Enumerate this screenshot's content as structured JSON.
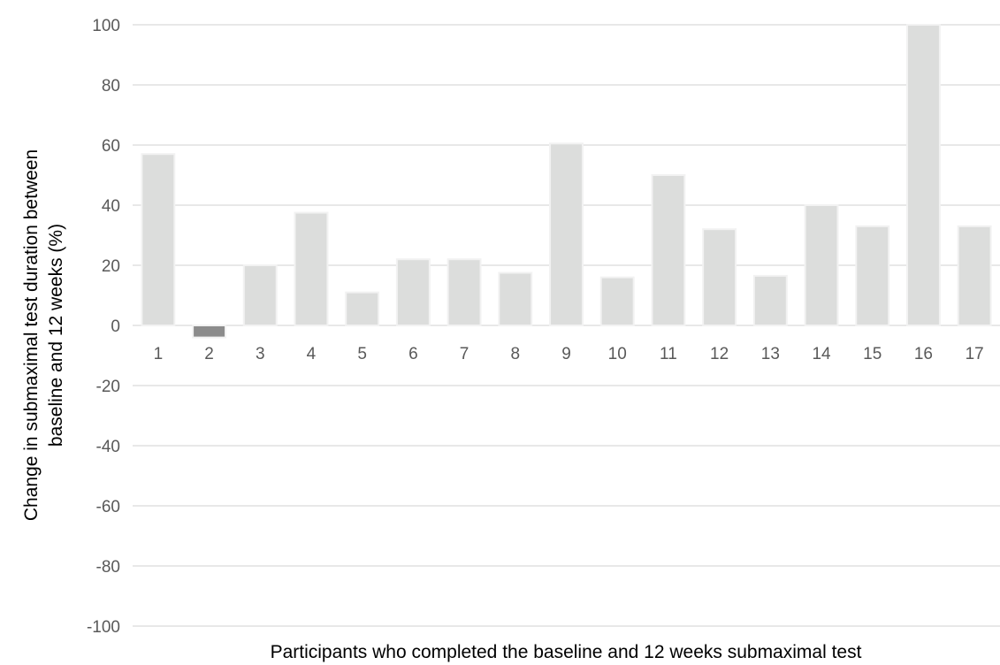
{
  "chart_data": {
    "type": "bar",
    "categories": [
      "1",
      "2",
      "3",
      "4",
      "5",
      "6",
      "7",
      "8",
      "9",
      "10",
      "11",
      "12",
      "13",
      "14",
      "15",
      "16",
      "17"
    ],
    "values": [
      57,
      -4,
      20,
      37.5,
      11,
      22,
      22,
      17.5,
      60.5,
      16,
      50,
      32,
      16.5,
      40,
      33,
      100,
      33
    ],
    "title": "",
    "xlabel": "Participants who completed the baseline and 12 weeks submaximal test",
    "ylabel_line1": "Change in submaximal test duration between",
    "ylabel_line2": "baseline and 12 weeks (%)",
    "ylim": [
      -100,
      100
    ],
    "yticks": [
      100,
      80,
      60,
      40,
      20,
      0,
      -20,
      -40,
      -60,
      -80,
      -100
    ],
    "grid": true,
    "legend": "none",
    "colors": {
      "positive_bar": "#dcdddc",
      "negative_bar": "#8c8c8c",
      "bar_outline": "#f2f2f2",
      "gridline": "#d9d9d9",
      "tick_label": "#595959",
      "axis_title": "#000000"
    }
  }
}
